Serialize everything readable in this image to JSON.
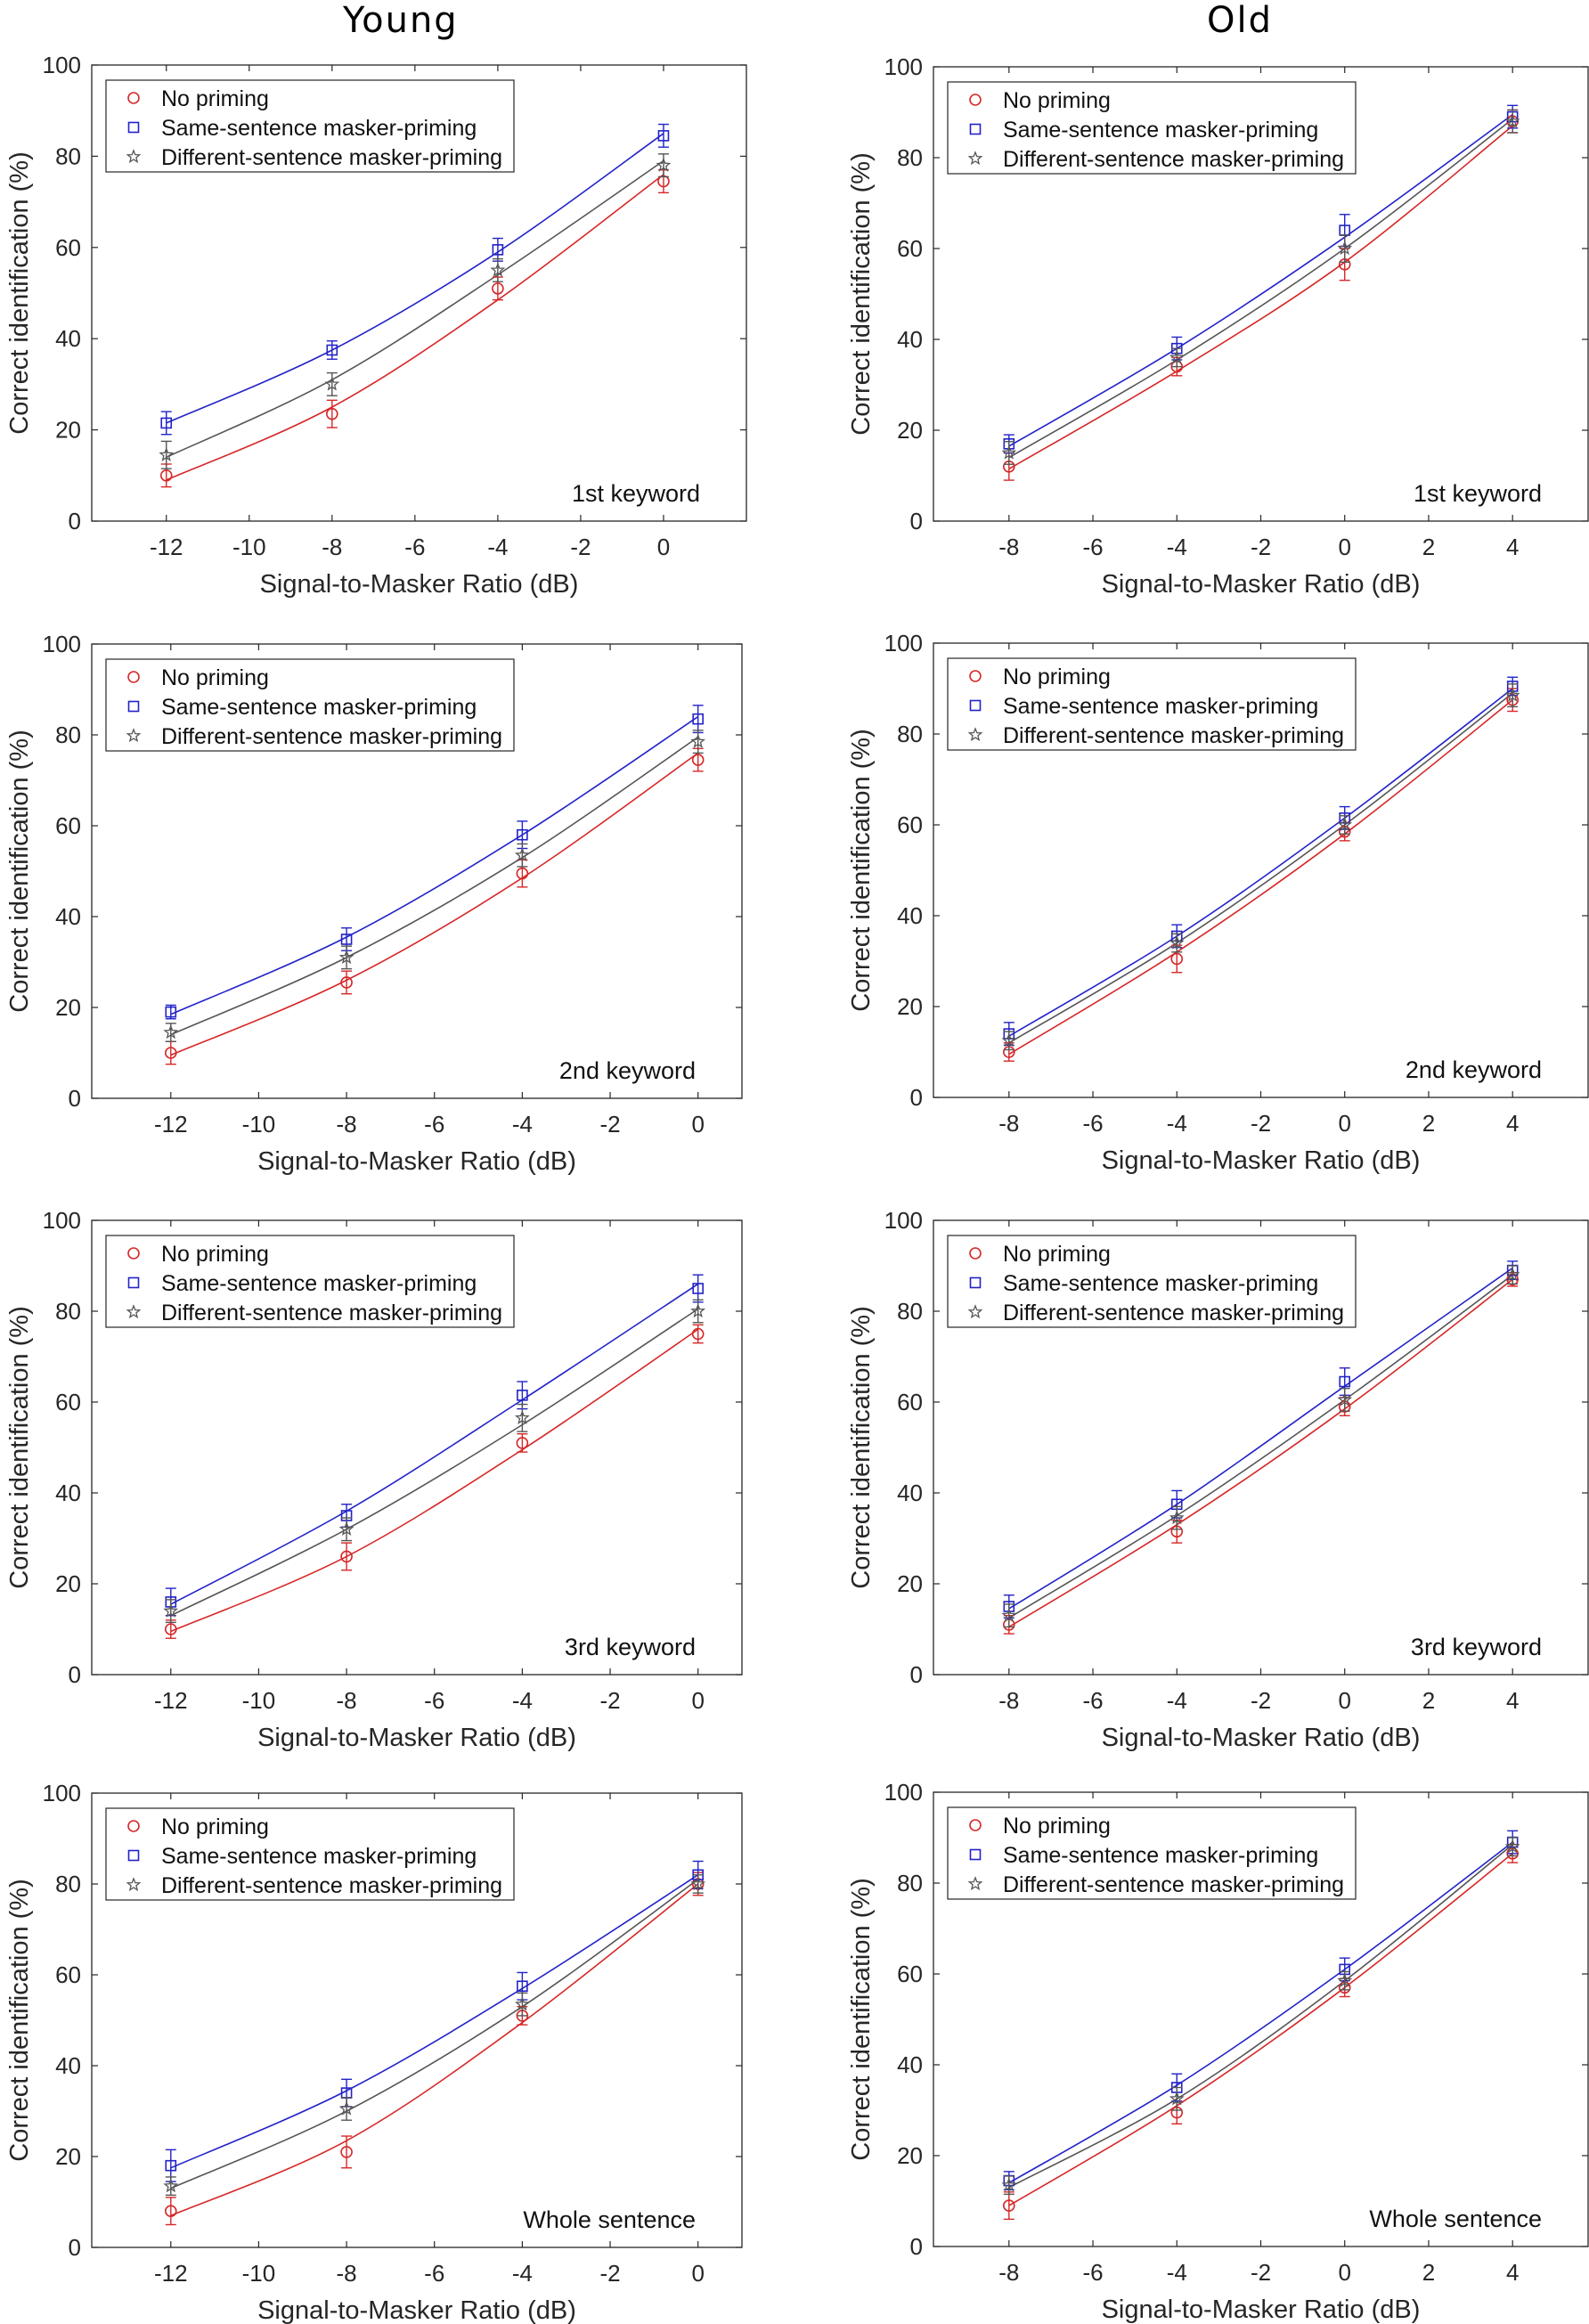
{
  "column_titles": {
    "left": "Young",
    "right": "Old"
  },
  "legend_labels": [
    "No priming",
    "Same-sentence masker-priming",
    "Different-sentence masker-priming"
  ],
  "series_colors": {
    "no_priming": "#d62728",
    "same": "#2222c8",
    "different": "#555555"
  },
  "chart_data": [
    {
      "type": "line",
      "panel": "young-1st",
      "group": "Young",
      "annotation": "1st keyword",
      "xlabel": "Signal-to-Masker Ratio (dB)",
      "ylabel": "Correct identification (%)",
      "xlim": [
        -13.8,
        2
      ],
      "ylim": [
        0,
        100
      ],
      "xticks": [
        -12,
        -10,
        -8,
        -6,
        -4,
        -2,
        0
      ],
      "yticks": [
        0,
        20,
        40,
        60,
        80,
        100
      ],
      "x": [
        -12,
        -8,
        -4,
        0
      ],
      "series": [
        {
          "name": "No priming",
          "key": "no_priming",
          "values": [
            10,
            23.5,
            51,
            74.5
          ],
          "errors": [
            2.5,
            3,
            2.5,
            2.5
          ],
          "fit_values": [
            9,
            25,
            48.5,
            76
          ]
        },
        {
          "name": "Same-sentence masker-priming",
          "key": "same",
          "values": [
            21.5,
            37.5,
            59.5,
            84.5
          ],
          "errors": [
            2.5,
            2,
            2.5,
            2.5
          ],
          "fit_values": [
            21.5,
            37.5,
            59,
            85
          ]
        },
        {
          "name": "Different-sentence masker-priming",
          "key": "different",
          "values": [
            14.5,
            30,
            55,
            78
          ],
          "errors": [
            3,
            2.5,
            2.5,
            2.5
          ],
          "fit_values": [
            14,
            31,
            54,
            79
          ]
        }
      ]
    },
    {
      "type": "line",
      "panel": "old-1st",
      "group": "Old",
      "annotation": "1st keyword",
      "xlabel": "Signal-to-Masker Ratio (dB)",
      "ylabel": "Correct identification (%)",
      "xlim": [
        -9.8,
        5.8
      ],
      "ylim": [
        0,
        100
      ],
      "xticks": [
        -8,
        -6,
        -4,
        -2,
        0,
        2,
        4
      ],
      "yticks": [
        0,
        20,
        40,
        60,
        80,
        100
      ],
      "x": [
        -8,
        -4,
        0,
        4
      ],
      "series": [
        {
          "name": "No priming",
          "key": "no_priming",
          "values": [
            12,
            34,
            56.5,
            88
          ],
          "errors": [
            3,
            2,
            3.5,
            2.5
          ],
          "fit_values": [
            11.5,
            33,
            57,
            87
          ]
        },
        {
          "name": "Same-sentence masker-priming",
          "key": "same",
          "values": [
            17,
            38,
            64,
            89
          ],
          "errors": [
            2,
            2.5,
            3.5,
            2.5
          ],
          "fit_values": [
            16.5,
            38,
            62.5,
            89.5
          ]
        },
        {
          "name": "Different-sentence masker-priming",
          "key": "different",
          "values": [
            15,
            36,
            60,
            88
          ],
          "errors": [
            2.5,
            2,
            3,
            2.5
          ],
          "fit_values": [
            14,
            35.5,
            60,
            88.5
          ]
        }
      ]
    },
    {
      "type": "line",
      "panel": "young-2nd",
      "group": "Young",
      "annotation": "2nd keyword",
      "xlabel": "Signal-to-Masker Ratio (dB)",
      "ylabel": "Correct identification (%)",
      "xlim": [
        -13.8,
        1
      ],
      "ylim": [
        0,
        100
      ],
      "xticks": [
        -12,
        -10,
        -8,
        -6,
        -4,
        -2,
        0
      ],
      "yticks": [
        0,
        20,
        40,
        60,
        80,
        100
      ],
      "x": [
        -12,
        -8,
        -4,
        0
      ],
      "series": [
        {
          "name": "No priming",
          "key": "no_priming",
          "values": [
            10,
            25.5,
            49.5,
            74.5
          ],
          "errors": [
            2.5,
            2.5,
            3,
            2.5
          ],
          "fit_values": [
            9.5,
            26,
            48.5,
            76
          ]
        },
        {
          "name": "Same-sentence masker-priming",
          "key": "same",
          "values": [
            19,
            35,
            58,
            83.5
          ],
          "errors": [
            1.5,
            2.5,
            3,
            3
          ],
          "fit_values": [
            18.5,
            35.5,
            58,
            84
          ]
        },
        {
          "name": "Different-sentence masker-priming",
          "key": "different",
          "values": [
            14.5,
            31,
            53.5,
            78.5
          ],
          "errors": [
            2,
            2.5,
            2.5,
            2.5
          ],
          "fit_values": [
            14,
            31,
            53,
            79.5
          ]
        }
      ]
    },
    {
      "type": "line",
      "panel": "old-2nd",
      "group": "Old",
      "annotation": "2nd keyword",
      "xlabel": "Signal-to-Masker Ratio (dB)",
      "ylabel": "Correct identification (%)",
      "xlim": [
        -9.8,
        5.8
      ],
      "ylim": [
        0,
        100
      ],
      "xticks": [
        -8,
        -6,
        -4,
        -2,
        0,
        2,
        4
      ],
      "yticks": [
        0,
        20,
        40,
        60,
        80,
        100
      ],
      "x": [
        -8,
        -4,
        0,
        4
      ],
      "series": [
        {
          "name": "No priming",
          "key": "no_priming",
          "values": [
            10,
            30.5,
            58.5,
            87.5
          ],
          "errors": [
            2,
            3,
            2,
            2.5
          ],
          "fit_values": [
            9.5,
            32,
            58,
            87.5
          ]
        },
        {
          "name": "Same-sentence masker-priming",
          "key": "same",
          "values": [
            14,
            35.5,
            61.5,
            90.5
          ],
          "errors": [
            2.5,
            2.5,
            2.5,
            2
          ],
          "fit_values": [
            13.5,
            35.5,
            61.5,
            90
          ]
        },
        {
          "name": "Different-sentence masker-priming",
          "key": "different",
          "values": [
            12.5,
            34,
            60,
            88.5
          ],
          "errors": [
            2,
            2,
            2,
            2.5
          ],
          "fit_values": [
            12,
            34,
            60,
            89
          ]
        }
      ]
    },
    {
      "type": "line",
      "panel": "young-3rd",
      "group": "Young",
      "annotation": "3rd keyword",
      "xlabel": "Signal-to-Masker Ratio (dB)",
      "ylabel": "Correct identification (%)",
      "xlim": [
        -13.8,
        1
      ],
      "ylim": [
        0,
        100
      ],
      "xticks": [
        -12,
        -10,
        -8,
        -6,
        -4,
        -2,
        0
      ],
      "yticks": [
        0,
        20,
        40,
        60,
        80,
        100
      ],
      "x": [
        -12,
        -8,
        -4,
        0
      ],
      "series": [
        {
          "name": "No priming",
          "key": "no_priming",
          "values": [
            10,
            26,
            51,
            75
          ],
          "errors": [
            2,
            3,
            2,
            2
          ],
          "fit_values": [
            9.5,
            26,
            49.5,
            76
          ]
        },
        {
          "name": "Same-sentence masker-priming",
          "key": "same",
          "values": [
            16,
            35,
            61.5,
            85
          ],
          "errors": [
            3,
            2.5,
            3,
            3
          ],
          "fit_values": [
            15.5,
            36,
            60.5,
            86
          ]
        },
        {
          "name": "Different-sentence masker-priming",
          "key": "different",
          "values": [
            14,
            32,
            56.5,
            80
          ],
          "errors": [
            2.5,
            2.5,
            3,
            2.5
          ],
          "fit_values": [
            13,
            32,
            55,
            80.5
          ]
        }
      ]
    },
    {
      "type": "line",
      "panel": "old-3rd",
      "group": "Old",
      "annotation": "3rd keyword",
      "xlabel": "Signal-to-Masker Ratio (dB)",
      "ylabel": "Correct identification (%)",
      "xlim": [
        -9.8,
        5.8
      ],
      "ylim": [
        0,
        100
      ],
      "xticks": [
        -8,
        -6,
        -4,
        -2,
        0,
        2,
        4
      ],
      "yticks": [
        0,
        20,
        40,
        60,
        80,
        100
      ],
      "x": [
        -8,
        -4,
        0,
        4
      ],
      "series": [
        {
          "name": "No priming",
          "key": "no_priming",
          "values": [
            11,
            31.5,
            59,
            87
          ],
          "errors": [
            2,
            2.5,
            2,
            1.5
          ],
          "fit_values": [
            10.5,
            33,
            58.5,
            87
          ]
        },
        {
          "name": "Same-sentence masker-priming",
          "key": "same",
          "values": [
            15,
            37.5,
            64.5,
            89
          ],
          "errors": [
            2.5,
            3,
            3,
            2
          ],
          "fit_values": [
            14.5,
            37.5,
            63.5,
            89.5
          ]
        },
        {
          "name": "Different-sentence masker-priming",
          "key": "different",
          "values": [
            13,
            34.5,
            60.5,
            88
          ],
          "errors": [
            2.5,
            2.5,
            2.5,
            2
          ],
          "fit_values": [
            12.5,
            35,
            60.5,
            88
          ]
        }
      ]
    },
    {
      "type": "line",
      "panel": "young-whole",
      "group": "Young",
      "annotation": "Whole sentence",
      "xlabel": "Signal-to-Masker Ratio (dB)",
      "ylabel": "Correct identification (%)",
      "xlim": [
        -13.8,
        1
      ],
      "ylim": [
        0,
        100
      ],
      "xticks": [
        -12,
        -10,
        -8,
        -6,
        -4,
        -2,
        0
      ],
      "yticks": [
        0,
        20,
        40,
        60,
        80,
        100
      ],
      "x": [
        -12,
        -8,
        -4,
        0
      ],
      "series": [
        {
          "name": "No priming",
          "key": "no_priming",
          "values": [
            8,
            21,
            51,
            80
          ],
          "errors": [
            3,
            3.5,
            2,
            2.5
          ],
          "fit_values": [
            7,
            23.5,
            49.5,
            80
          ]
        },
        {
          "name": "Same-sentence masker-priming",
          "key": "same",
          "values": [
            18,
            34,
            57.5,
            82
          ],
          "errors": [
            3.5,
            3,
            3,
            3
          ],
          "fit_values": [
            17.5,
            34.5,
            57,
            82
          ]
        },
        {
          "name": "Different-sentence masker-priming",
          "key": "different",
          "values": [
            13.5,
            30.5,
            53.5,
            80
          ],
          "errors": [
            2,
            2.5,
            2.5,
            2
          ],
          "fit_values": [
            13,
            30,
            53,
            81
          ]
        }
      ]
    },
    {
      "type": "line",
      "panel": "old-whole",
      "group": "Old",
      "annotation": "Whole sentence",
      "xlabel": "Signal-to-Masker Ratio (dB)",
      "ylabel": "Correct identification (%)",
      "xlim": [
        -9.8,
        5.8
      ],
      "ylim": [
        0,
        100
      ],
      "xticks": [
        -8,
        -6,
        -4,
        -2,
        0,
        2,
        4
      ],
      "yticks": [
        0,
        20,
        40,
        60,
        80,
        100
      ],
      "x": [
        -8,
        -4,
        0,
        4
      ],
      "series": [
        {
          "name": "No priming",
          "key": "no_priming",
          "values": [
            9,
            29.5,
            57,
            86.5
          ],
          "errors": [
            3,
            2.5,
            2,
            2
          ],
          "fit_values": [
            9,
            31,
            57,
            86.5
          ]
        },
        {
          "name": "Same-sentence masker-priming",
          "key": "same",
          "values": [
            14.5,
            35,
            61,
            89
          ],
          "errors": [
            2,
            3,
            2.5,
            2.5
          ],
          "fit_values": [
            14,
            35.5,
            61,
            89
          ]
        },
        {
          "name": "Different-sentence masker-priming",
          "key": "different",
          "values": [
            13.5,
            32.5,
            58.5,
            88
          ],
          "errors": [
            2,
            2.5,
            2,
            2
          ],
          "fit_values": [
            13,
            32.5,
            58.5,
            88.5
          ]
        }
      ]
    }
  ]
}
